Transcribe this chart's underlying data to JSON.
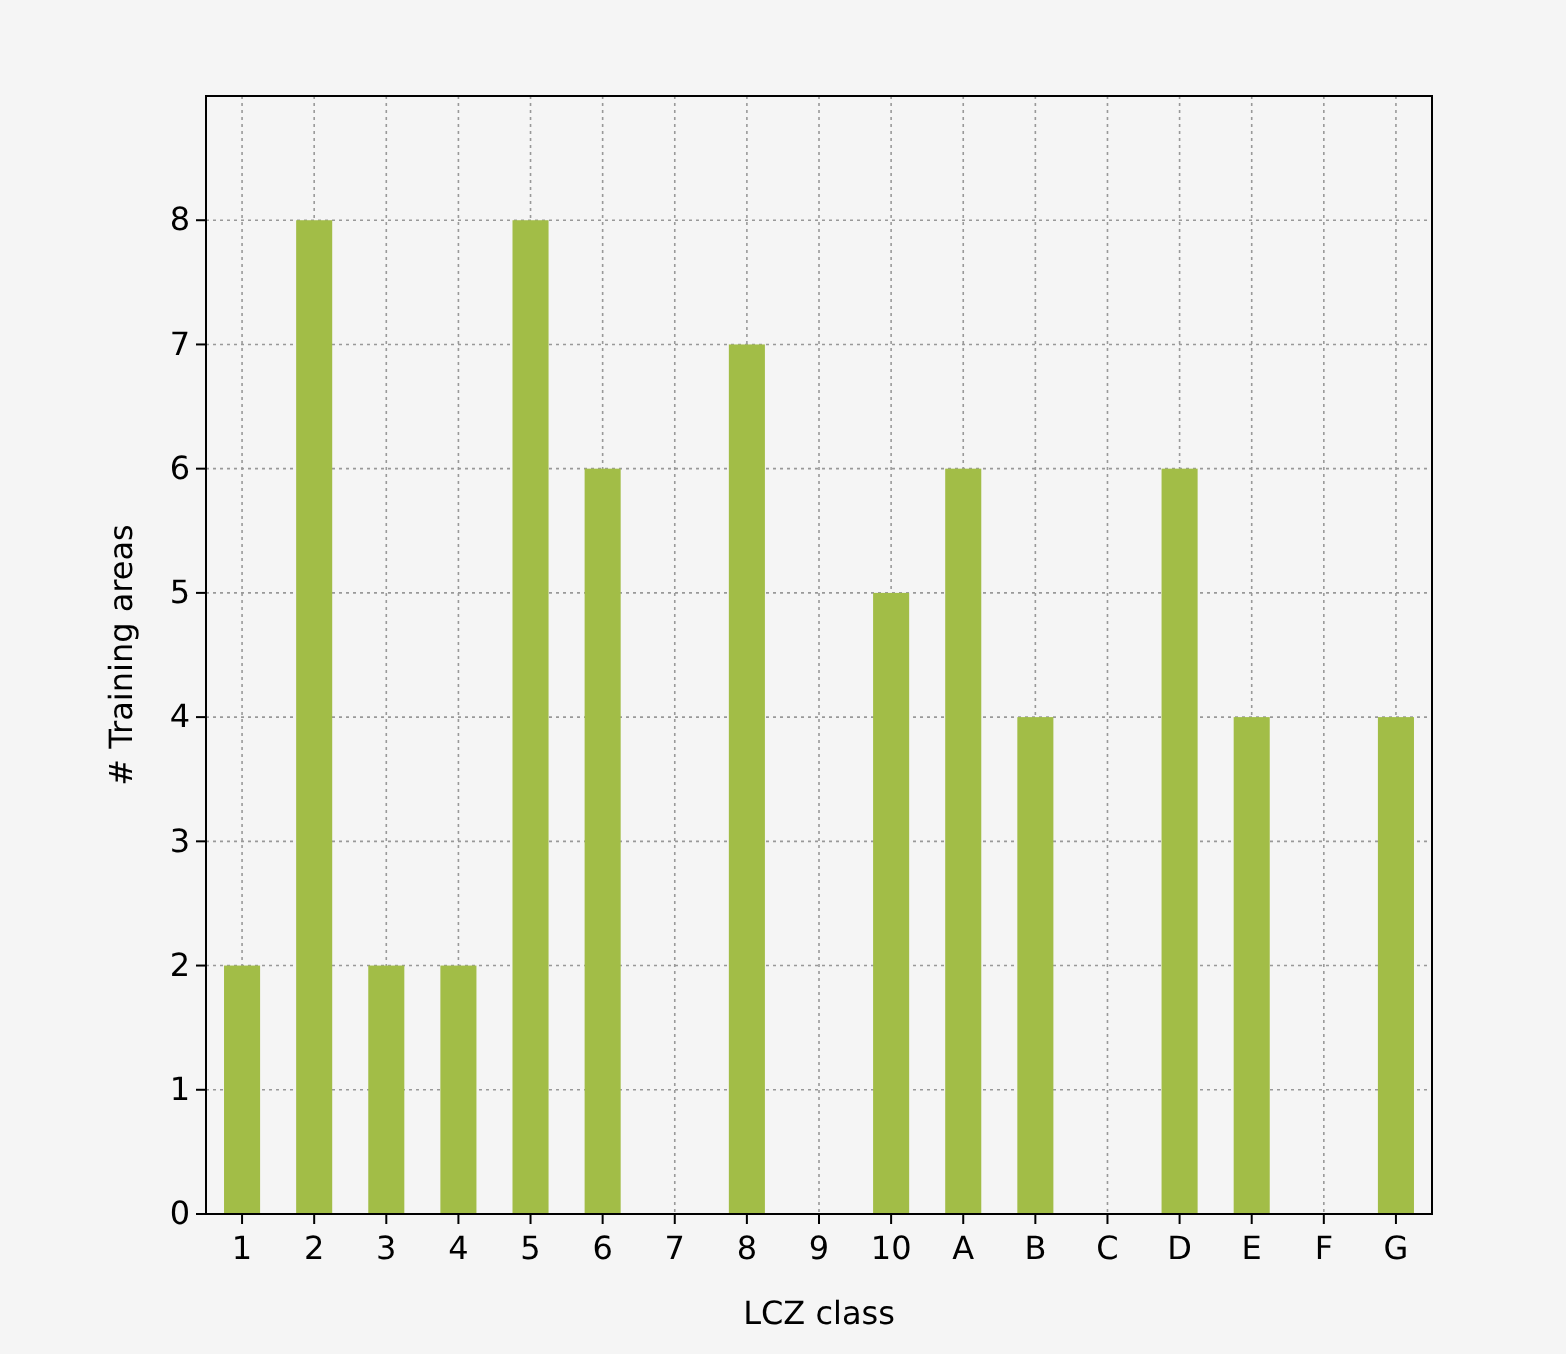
{
  "chart_data": {
    "type": "bar",
    "xlabel": "LCZ class",
    "ylabel": "# Training areas",
    "categories": [
      "1",
      "2",
      "3",
      "4",
      "5",
      "6",
      "7",
      "8",
      "9",
      "10",
      "A",
      "B",
      "C",
      "D",
      "E",
      "F",
      "G"
    ],
    "values": [
      2,
      8,
      2,
      2,
      8,
      6,
      0,
      7,
      0,
      5,
      6,
      4,
      0,
      6,
      4,
      0,
      4
    ],
    "color": "#a2bd47",
    "ylim": [
      0,
      9
    ],
    "yticks": [
      0,
      1,
      2,
      3,
      4,
      5,
      6,
      7,
      8
    ],
    "grid": true
  }
}
